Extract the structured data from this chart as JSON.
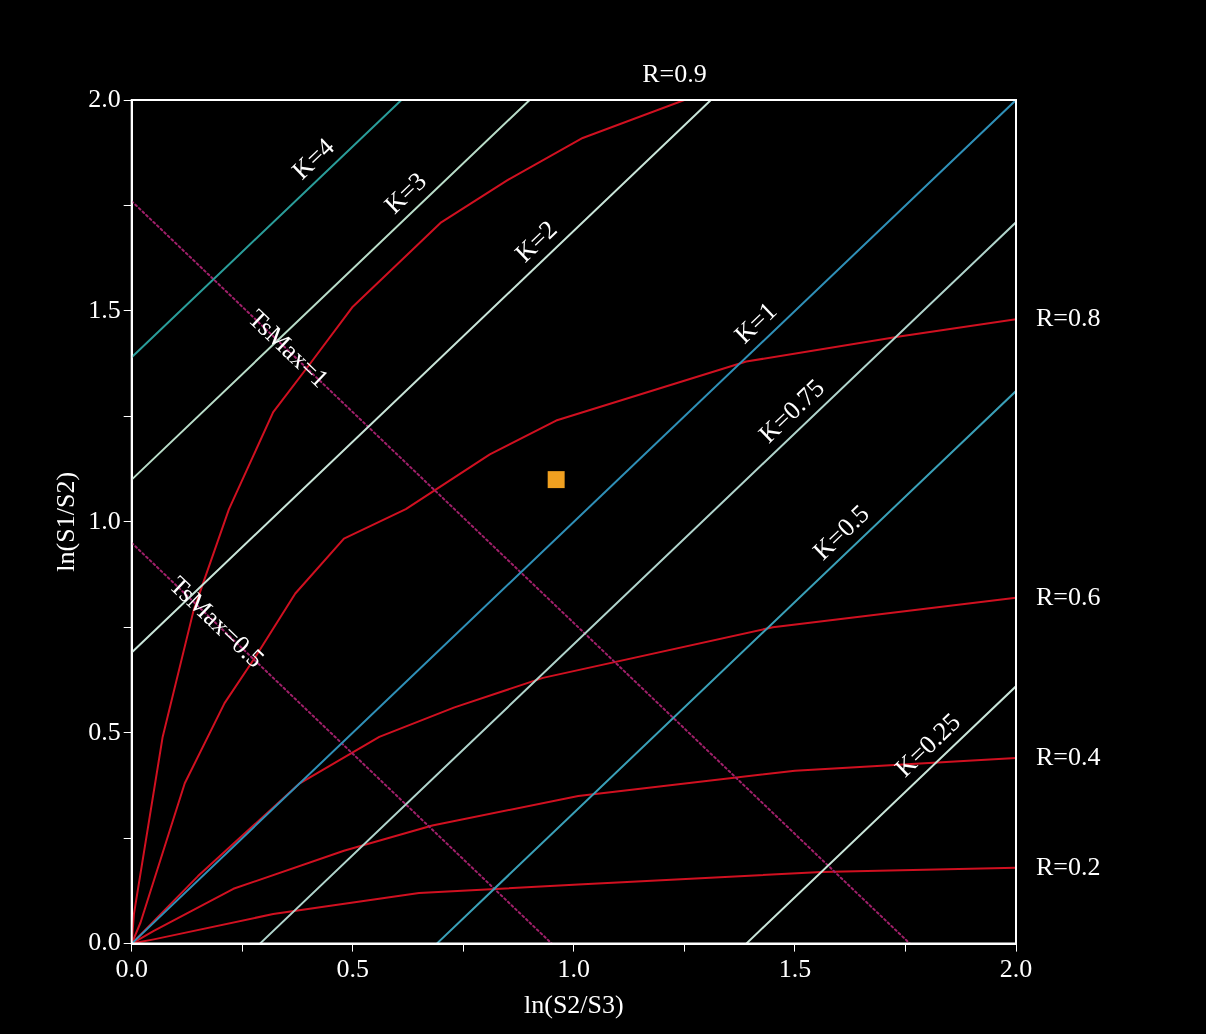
{
  "chart_data": {
    "type": "line",
    "xlabel": "ln(S2/S3)",
    "ylabel": "ln(S1/S2)",
    "xlim": [
      0,
      2
    ],
    "ylim": [
      0,
      2
    ],
    "xticks": [
      {
        "value": 0,
        "label": "0.0"
      },
      {
        "value": 0.25,
        "label": null
      },
      {
        "value": 0.5,
        "label": "0.5"
      },
      {
        "value": 0.75,
        "label": null
      },
      {
        "value": 1,
        "label": "1.0"
      },
      {
        "value": 1.25,
        "label": null
      },
      {
        "value": 1.5,
        "label": "1.5"
      },
      {
        "value": 1.75,
        "label": null
      },
      {
        "value": 2,
        "label": "2.0"
      }
    ],
    "yticks": [
      {
        "value": 0,
        "label": "0.0"
      },
      {
        "value": 0.25,
        "label": null
      },
      {
        "value": 0.5,
        "label": "0.5"
      },
      {
        "value": 0.75,
        "label": null
      },
      {
        "value": 1,
        "label": "1.0"
      },
      {
        "value": 1.25,
        "label": null
      },
      {
        "value": 1.5,
        "label": "1.5"
      },
      {
        "value": 1.75,
        "label": null
      },
      {
        "value": 2,
        "label": "2.0"
      }
    ],
    "grid": false,
    "legend": false,
    "marker": "none",
    "line_style": "solid",
    "series": [
      {
        "name": "K=4",
        "color": "#2a9d9a",
        "x": [
          0,
          0.61
        ],
        "values": [
          1.39,
          2
        ]
      },
      {
        "name": "K=3",
        "color": "#b8dcc8",
        "x": [
          0,
          0.9
        ],
        "values": [
          1.1,
          2
        ]
      },
      {
        "name": "K=2",
        "color": "#c8e4d8",
        "x": [
          0,
          1.31
        ],
        "values": [
          0.69,
          2
        ]
      },
      {
        "name": "K=1",
        "color": "#2f90b8",
        "x": [
          0,
          2
        ],
        "values": [
          0,
          2
        ]
      },
      {
        "name": "K=0.75",
        "color": "#b0d4cc",
        "x": [
          0.29,
          2
        ],
        "values": [
          0,
          1.71
        ]
      },
      {
        "name": "K=0.5",
        "color": "#3aa0b8",
        "x": [
          0.69,
          2
        ],
        "values": [
          0,
          1.31
        ]
      },
      {
        "name": "K=0.25",
        "color": "#c8e4d8",
        "x": [
          1.39,
          2
        ],
        "values": [
          0,
          0.61
        ]
      },
      {
        "name": "TsMax=1",
        "color": "#a0206a",
        "line_style": "dotted",
        "x": [
          0,
          1.76
        ],
        "values": [
          1.76,
          0
        ]
      },
      {
        "name": "TsMax=0.5",
        "color": "#a0206a",
        "line_style": "dotted",
        "x": [
          0,
          0.95
        ],
        "values": [
          0.95,
          0
        ]
      },
      {
        "name": "R=0.9",
        "color": "#d01020",
        "x": [
          0,
          0.005,
          0.07,
          0.14,
          0.22,
          0.32,
          0.4,
          0.5,
          0.7,
          0.85,
          1.02,
          1.25
        ],
        "values": [
          0,
          0.07,
          0.49,
          0.79,
          1.03,
          1.26,
          1.37,
          1.51,
          1.71,
          1.81,
          1.91,
          2
        ]
      },
      {
        "name": "R=0.8",
        "color": "#d01020",
        "x": [
          0,
          0.02,
          0.12,
          0.21,
          0.28,
          0.37,
          0.48,
          0.62,
          0.81,
          0.96,
          1.39,
          1.74,
          2
        ],
        "values": [
          0,
          0.05,
          0.38,
          0.57,
          0.68,
          0.83,
          0.96,
          1.03,
          1.16,
          1.24,
          1.38,
          1.44,
          1.48
        ]
      },
      {
        "name": "R=0.6",
        "color": "#d01020",
        "x": [
          0,
          0.15,
          0.38,
          0.56,
          0.73,
          0.93,
          1.45,
          2
        ],
        "values": [
          0,
          0.16,
          0.38,
          0.49,
          0.56,
          0.63,
          0.75,
          0.82
        ]
      },
      {
        "name": "R=0.4",
        "color": "#d01020",
        "x": [
          0,
          0.05,
          0.23,
          0.48,
          0.68,
          1.01,
          1.5,
          2
        ],
        "values": [
          0,
          0.03,
          0.13,
          0.22,
          0.28,
          0.35,
          0.41,
          0.44
        ]
      },
      {
        "name": "R=0.2",
        "color": "#d01020",
        "x": [
          0,
          0.05,
          0.32,
          0.65,
          1.01,
          1.56,
          2
        ],
        "values": [
          0,
          0.01,
          0.07,
          0.12,
          0.14,
          0.17,
          0.18
        ]
      },
      {
        "type": "scatter",
        "marker": "square",
        "color": "#f0a020",
        "x": [
          0.96
        ],
        "values": [
          1.1
        ]
      }
    ]
  }
}
